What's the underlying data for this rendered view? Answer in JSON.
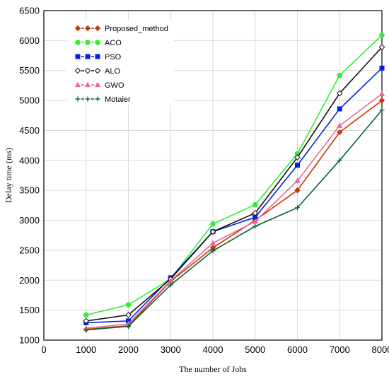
{
  "chart_data": {
    "type": "line",
    "xlabel": "The number of Jobs",
    "ylabel": "Delay time (ms)",
    "xlim": [
      0,
      8000
    ],
    "ylim": [
      1000,
      6500
    ],
    "x_ticks": [
      0,
      1000,
      2000,
      3000,
      4000,
      5000,
      6000,
      7000,
      8000
    ],
    "y_ticks": [
      1000,
      1500,
      2000,
      2500,
      3000,
      3500,
      4000,
      4500,
      5000,
      5500,
      6000,
      6500
    ],
    "grid": "both",
    "legend_position": "top-left",
    "x": [
      1000,
      2000,
      3000,
      4000,
      5000,
      6000,
      7000,
      8000
    ],
    "series": [
      {
        "name": "Proposed_method",
        "color": "#cc3300",
        "marker": "diamond",
        "dash": true,
        "values": [
          1180,
          1240,
          1980,
          2540,
          3000,
          3500,
          4470,
          5000
        ]
      },
      {
        "name": "ACO",
        "color": "#33ee33",
        "marker": "circle",
        "dash": true,
        "values": [
          1420,
          1590,
          2020,
          2940,
          3260,
          4110,
          5420,
          6090
        ]
      },
      {
        "name": "PSO",
        "color": "#0022ee",
        "marker": "square",
        "dash": true,
        "values": [
          1290,
          1320,
          2040,
          2810,
          3050,
          3920,
          4860,
          5540
        ]
      },
      {
        "name": "ALO",
        "color": "#111111",
        "marker": "diamond-open",
        "dash": true,
        "values": [
          1320,
          1420,
          2020,
          2810,
          3120,
          4050,
          5120,
          5890
        ]
      },
      {
        "name": "GWO",
        "color": "#ee6699",
        "marker": "triangle",
        "dash": true,
        "values": [
          1200,
          1270,
          1990,
          2620,
          2980,
          3660,
          4580,
          5110
        ]
      },
      {
        "name": "Motaier",
        "color": "#006633",
        "marker": "plus",
        "dash": true,
        "values": [
          1170,
          1230,
          1920,
          2490,
          2900,
          3210,
          4000,
          4840
        ]
      }
    ]
  }
}
